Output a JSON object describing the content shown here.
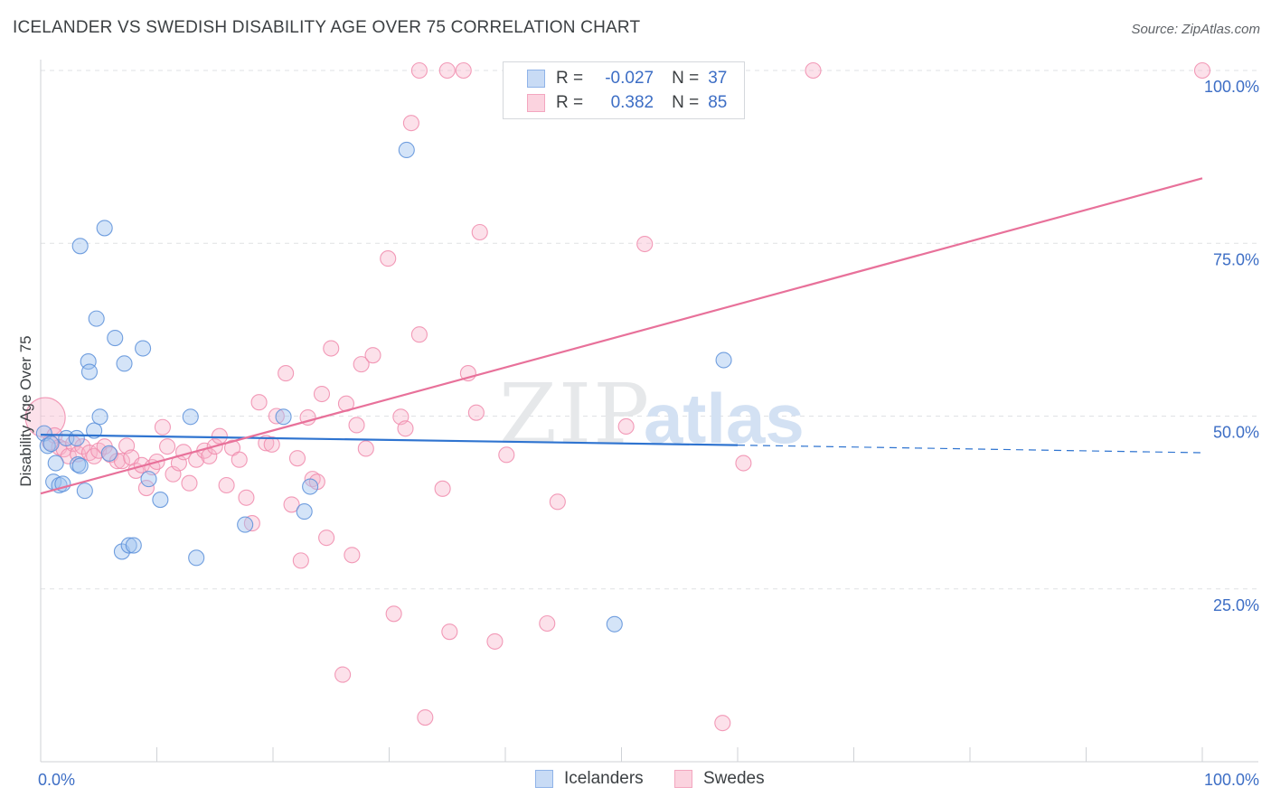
{
  "title": "ICELANDER VS SWEDISH DISABILITY AGE OVER 75 CORRELATION CHART",
  "source": "Source: ZipAtlas.com",
  "watermark_zip": "ZIP",
  "watermark_atlas": "atlas",
  "legend": {
    "rows": [
      {
        "r_label": "R =",
        "r_value": "-0.027",
        "n_label": "N =",
        "n_value": "37",
        "color": "#8fb3e8",
        "fill": "#c8dbf5"
      },
      {
        "r_label": "R =",
        "r_value": "0.382",
        "n_label": "N =",
        "n_value": "85",
        "color": "#f3a6bf",
        "fill": "#fbd3df"
      }
    ]
  },
  "bottom_legend": [
    {
      "label": "Icelanders",
      "color": "#8fb3e8",
      "fill": "#c8dbf5"
    },
    {
      "label": "Swedes",
      "color": "#f3a6bf",
      "fill": "#fbd3df"
    }
  ],
  "chart_data": {
    "type": "scatter",
    "title": "ICELANDER VS SWEDISH DISABILITY AGE OVER 75 CORRELATION CHART",
    "xlabel": "",
    "ylabel": "Disability Age Over 75",
    "xlim": [
      0,
      100
    ],
    "ylim": [
      0,
      100
    ],
    "x_tick_labels": [
      "0.0%",
      "100.0%"
    ],
    "y_ticks": [
      25,
      50,
      75,
      100
    ],
    "y_tick_labels": [
      "25.0%",
      "50.0%",
      "75.0%",
      "100.0%"
    ],
    "series": [
      {
        "name": "Icelanders",
        "color": "#5b8fd9",
        "fill": "rgba(160,195,240,0.45)",
        "line_color": "#2f74d0",
        "r": -0.027,
        "n": 37,
        "trend": {
          "x0": 0,
          "y0": 47.3,
          "x1": 60,
          "y1": 45.8,
          "dash_x1": 100,
          "dash_y1": 44.7
        },
        "points": [
          [
            0.3,
            47.5
          ],
          [
            0.6,
            45.7
          ],
          [
            0.9,
            46.0
          ],
          [
            1.1,
            40.5
          ],
          [
            1.3,
            43.2
          ],
          [
            1.6,
            40.0
          ],
          [
            1.9,
            40.2
          ],
          [
            2.2,
            46.8
          ],
          [
            3.1,
            46.8
          ],
          [
            3.2,
            43.0
          ],
          [
            3.4,
            42.8
          ],
          [
            3.4,
            74.6
          ],
          [
            3.8,
            39.2
          ],
          [
            4.1,
            57.9
          ],
          [
            4.2,
            56.4
          ],
          [
            4.6,
            47.9
          ],
          [
            4.8,
            64.1
          ],
          [
            5.1,
            49.9
          ],
          [
            5.5,
            77.2
          ],
          [
            5.9,
            44.6
          ],
          [
            6.4,
            61.3
          ],
          [
            7.0,
            30.4
          ],
          [
            7.2,
            57.6
          ],
          [
            7.6,
            31.3
          ],
          [
            8.0,
            31.3
          ],
          [
            8.8,
            59.8
          ],
          [
            9.3,
            40.9
          ],
          [
            10.3,
            37.9
          ],
          [
            12.9,
            49.9
          ],
          [
            13.4,
            29.5
          ],
          [
            17.6,
            34.3
          ],
          [
            20.9,
            49.9
          ],
          [
            22.7,
            36.2
          ],
          [
            23.2,
            39.8
          ],
          [
            31.5,
            88.5
          ],
          [
            49.4,
            19.9
          ],
          [
            58.8,
            58.1
          ]
        ]
      },
      {
        "name": "Swedes",
        "color": "#f08aab",
        "fill": "rgba(248,180,202,0.40)",
        "line_color": "#e8719a",
        "r": 0.382,
        "n": 85,
        "trend": {
          "x0": 0,
          "y0": 38.8,
          "x1": 100,
          "y1": 84.4
        },
        "points": [
          [
            0.4,
            49.8
          ],
          [
            0.8,
            46.2
          ],
          [
            1.2,
            47.2
          ],
          [
            1.6,
            45.5
          ],
          [
            2.0,
            45.2
          ],
          [
            2.4,
            44.2
          ],
          [
            2.8,
            46.0
          ],
          [
            3.2,
            44.5
          ],
          [
            3.6,
            45.6
          ],
          [
            4.2,
            44.7
          ],
          [
            4.6,
            44.2
          ],
          [
            5.0,
            45.0
          ],
          [
            5.5,
            45.6
          ],
          [
            6.0,
            44.4
          ],
          [
            6.6,
            43.5
          ],
          [
            7.0,
            43.5
          ],
          [
            7.4,
            45.7
          ],
          [
            7.8,
            44.0
          ],
          [
            8.2,
            42.1
          ],
          [
            8.7,
            42.9
          ],
          [
            9.1,
            39.6
          ],
          [
            9.6,
            42.6
          ],
          [
            10.0,
            43.4
          ],
          [
            10.5,
            48.4
          ],
          [
            10.9,
            45.6
          ],
          [
            11.4,
            41.6
          ],
          [
            11.9,
            43.2
          ],
          [
            12.3,
            44.8
          ],
          [
            12.8,
            40.3
          ],
          [
            13.4,
            43.7
          ],
          [
            14.1,
            45.0
          ],
          [
            14.5,
            44.2
          ],
          [
            15.0,
            45.6
          ],
          [
            15.4,
            47.1
          ],
          [
            16.0,
            40.0
          ],
          [
            16.5,
            45.4
          ],
          [
            17.1,
            43.7
          ],
          [
            17.7,
            38.2
          ],
          [
            18.2,
            34.5
          ],
          [
            18.8,
            52.0
          ],
          [
            19.4,
            46.1
          ],
          [
            19.9,
            45.9
          ],
          [
            20.3,
            50.0
          ],
          [
            21.1,
            56.2
          ],
          [
            21.6,
            37.2
          ],
          [
            22.1,
            43.9
          ],
          [
            22.4,
            29.1
          ],
          [
            23.0,
            49.8
          ],
          [
            23.4,
            40.9
          ],
          [
            23.8,
            40.5
          ],
          [
            24.2,
            53.2
          ],
          [
            24.6,
            32.4
          ],
          [
            25.0,
            59.8
          ],
          [
            26.0,
            12.6
          ],
          [
            26.3,
            51.8
          ],
          [
            26.8,
            29.9
          ],
          [
            27.2,
            48.7
          ],
          [
            27.6,
            57.5
          ],
          [
            28.0,
            45.3
          ],
          [
            28.6,
            58.8
          ],
          [
            29.9,
            72.8
          ],
          [
            30.4,
            21.4
          ],
          [
            31.0,
            49.9
          ],
          [
            31.4,
            48.2
          ],
          [
            31.9,
            92.4
          ],
          [
            32.6,
            61.8
          ],
          [
            32.6,
            100.0
          ],
          [
            33.1,
            6.4
          ],
          [
            34.6,
            39.5
          ],
          [
            35.0,
            100.0
          ],
          [
            35.2,
            18.8
          ],
          [
            36.4,
            100.0
          ],
          [
            36.8,
            56.2
          ],
          [
            37.5,
            50.5
          ],
          [
            37.8,
            76.6
          ],
          [
            39.1,
            17.4
          ],
          [
            40.1,
            44.4
          ],
          [
            43.6,
            20.0
          ],
          [
            44.5,
            37.6
          ],
          [
            50.4,
            48.5
          ],
          [
            52.0,
            74.9
          ],
          [
            58.7,
            5.6
          ],
          [
            60.5,
            43.2
          ],
          [
            66.5,
            100.0
          ],
          [
            100.0,
            100.0
          ]
        ]
      }
    ]
  }
}
